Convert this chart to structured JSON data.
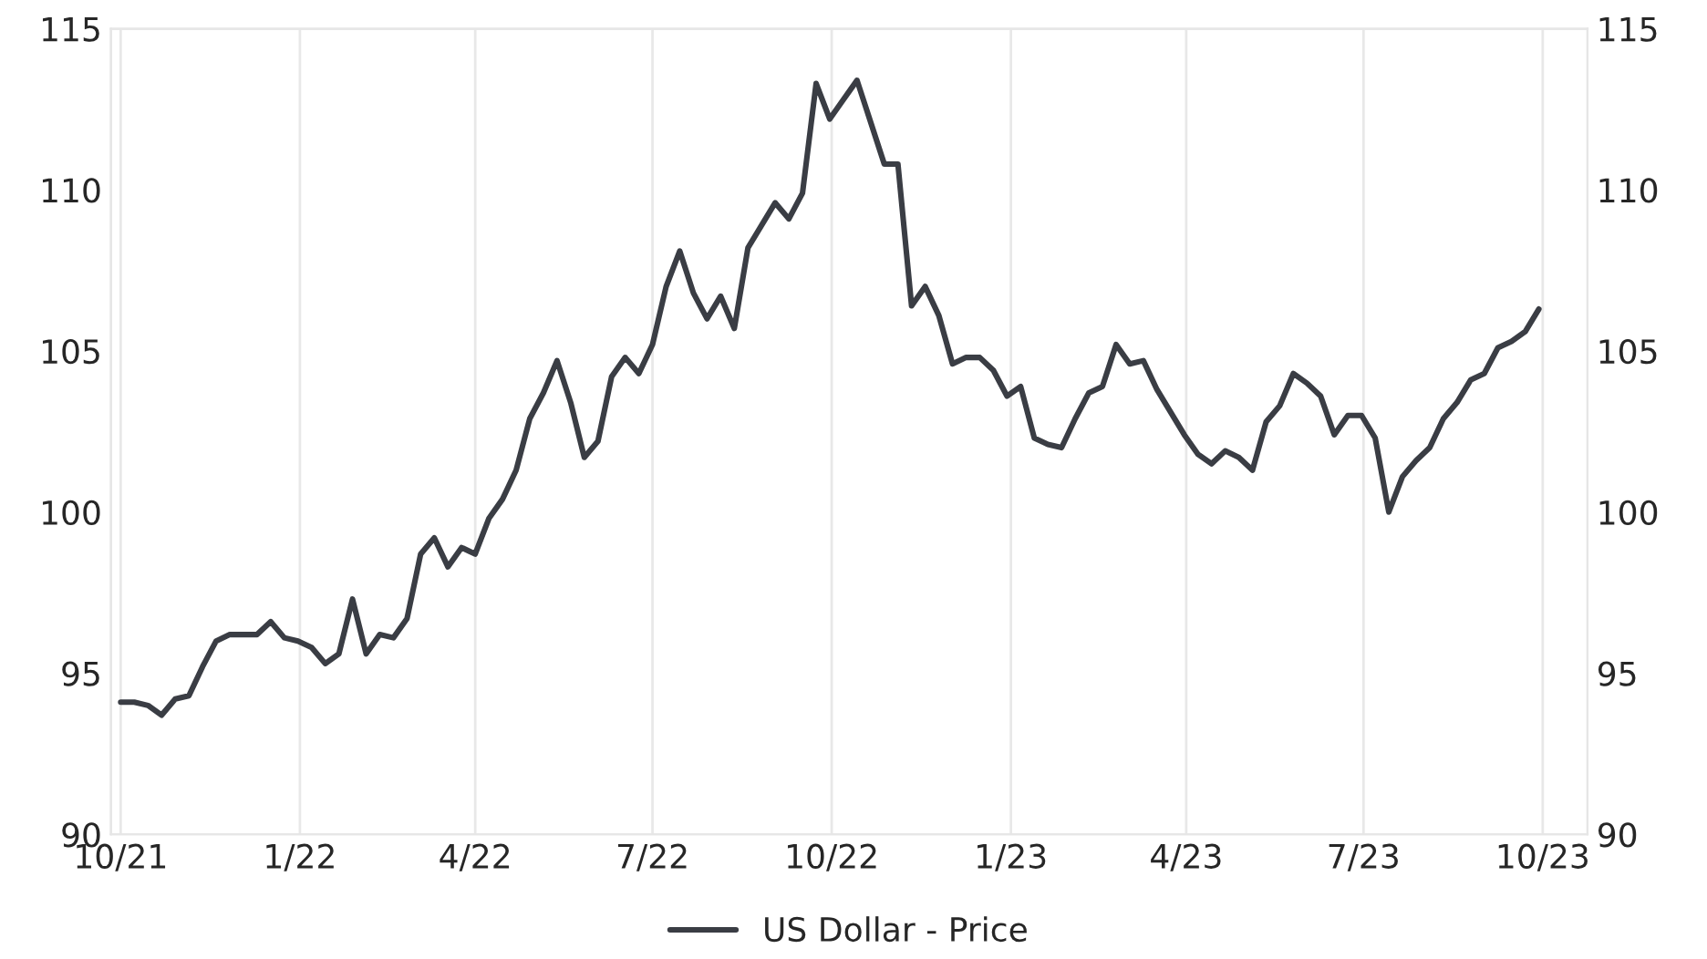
{
  "chart_data": {
    "type": "line",
    "x": [
      "2021-10-01",
      "2021-10-08",
      "2021-10-15",
      "2021-10-22",
      "2021-10-29",
      "2021-11-05",
      "2021-11-12",
      "2021-11-19",
      "2021-11-26",
      "2021-12-03",
      "2021-12-10",
      "2021-12-17",
      "2021-12-24",
      "2021-12-31",
      "2022-01-07",
      "2022-01-14",
      "2022-01-21",
      "2022-01-28",
      "2022-02-04",
      "2022-02-11",
      "2022-02-18",
      "2022-02-25",
      "2022-03-04",
      "2022-03-11",
      "2022-03-18",
      "2022-03-25",
      "2022-04-01",
      "2022-04-08",
      "2022-04-15",
      "2022-04-22",
      "2022-04-29",
      "2022-05-06",
      "2022-05-13",
      "2022-05-20",
      "2022-05-27",
      "2022-06-03",
      "2022-06-10",
      "2022-06-17",
      "2022-06-24",
      "2022-07-01",
      "2022-07-08",
      "2022-07-15",
      "2022-07-22",
      "2022-07-29",
      "2022-08-05",
      "2022-08-12",
      "2022-08-19",
      "2022-08-26",
      "2022-09-02",
      "2022-09-09",
      "2022-09-16",
      "2022-09-23",
      "2022-09-30",
      "2022-10-07",
      "2022-10-14",
      "2022-10-21",
      "2022-10-28",
      "2022-11-04",
      "2022-11-11",
      "2022-11-18",
      "2022-11-25",
      "2022-12-02",
      "2022-12-09",
      "2022-12-16",
      "2022-12-23",
      "2022-12-30",
      "2023-01-06",
      "2023-01-13",
      "2023-01-20",
      "2023-01-27",
      "2023-02-03",
      "2023-02-10",
      "2023-02-17",
      "2023-02-24",
      "2023-03-03",
      "2023-03-10",
      "2023-03-17",
      "2023-03-24",
      "2023-03-31",
      "2023-04-07",
      "2023-04-14",
      "2023-04-21",
      "2023-04-28",
      "2023-05-05",
      "2023-05-12",
      "2023-05-19",
      "2023-05-26",
      "2023-06-02",
      "2023-06-09",
      "2023-06-16",
      "2023-06-23",
      "2023-06-30",
      "2023-07-07",
      "2023-07-14",
      "2023-07-21",
      "2023-07-28",
      "2023-08-04",
      "2023-08-11",
      "2023-08-18",
      "2023-08-25",
      "2023-09-01",
      "2023-09-08",
      "2023-09-15",
      "2023-09-22",
      "2023-09-29"
    ],
    "series": [
      {
        "name": "US Dollar - Price",
        "color": "#3a3d44",
        "values": [
          94.1,
          94.1,
          94.0,
          93.7,
          94.2,
          94.3,
          95.2,
          96.0,
          96.2,
          96.2,
          96.2,
          96.6,
          96.1,
          96.0,
          95.8,
          95.3,
          95.6,
          97.3,
          95.6,
          96.2,
          96.1,
          96.7,
          98.7,
          99.2,
          98.3,
          98.9,
          98.7,
          99.8,
          100.4,
          101.3,
          102.9,
          103.7,
          104.7,
          103.4,
          101.7,
          102.2,
          104.2,
          104.8,
          104.3,
          105.2,
          107.0,
          108.1,
          106.8,
          106.0,
          106.7,
          105.7,
          108.2,
          108.9,
          109.6,
          109.1,
          109.9,
          113.3,
          112.2,
          112.8,
          113.4,
          112.1,
          110.8,
          110.8,
          106.4,
          107.0,
          106.1,
          104.6,
          104.8,
          104.8,
          104.4,
          103.6,
          103.9,
          102.3,
          102.1,
          102.0,
          102.9,
          103.7,
          103.9,
          105.2,
          104.6,
          104.7,
          103.8,
          103.1,
          102.4,
          101.8,
          101.5,
          101.9,
          101.7,
          101.3,
          102.8,
          103.3,
          104.3,
          104.0,
          103.6,
          102.4,
          103.0,
          103.0,
          102.3,
          100.0,
          101.1,
          101.6,
          102.0,
          102.9,
          103.4,
          104.1,
          104.3,
          105.1,
          105.3,
          105.6,
          106.3
        ]
      }
    ],
    "xlim": [
      "2021-09-26",
      "2023-10-24"
    ],
    "xticks": [
      {
        "value": "2021-10-01",
        "label": "10/21"
      },
      {
        "value": "2022-01-01",
        "label": "1/22"
      },
      {
        "value": "2022-04-01",
        "label": "4/22"
      },
      {
        "value": "2022-07-01",
        "label": "7/22"
      },
      {
        "value": "2022-10-01",
        "label": "10/22"
      },
      {
        "value": "2023-01-01",
        "label": "1/23"
      },
      {
        "value": "2023-04-01",
        "label": "4/23"
      },
      {
        "value": "2023-07-01",
        "label": "7/23"
      },
      {
        "value": "2023-10-01",
        "label": "10/23"
      }
    ],
    "ylim": [
      90,
      115
    ],
    "yticks": [
      90,
      95,
      100,
      105,
      110,
      115
    ],
    "y2lim": [
      90,
      115
    ],
    "y2ticks": [
      90,
      95,
      100,
      105,
      110,
      115
    ],
    "grid": "x",
    "legend": "bottom",
    "marker": "none",
    "line_style": "solid"
  }
}
